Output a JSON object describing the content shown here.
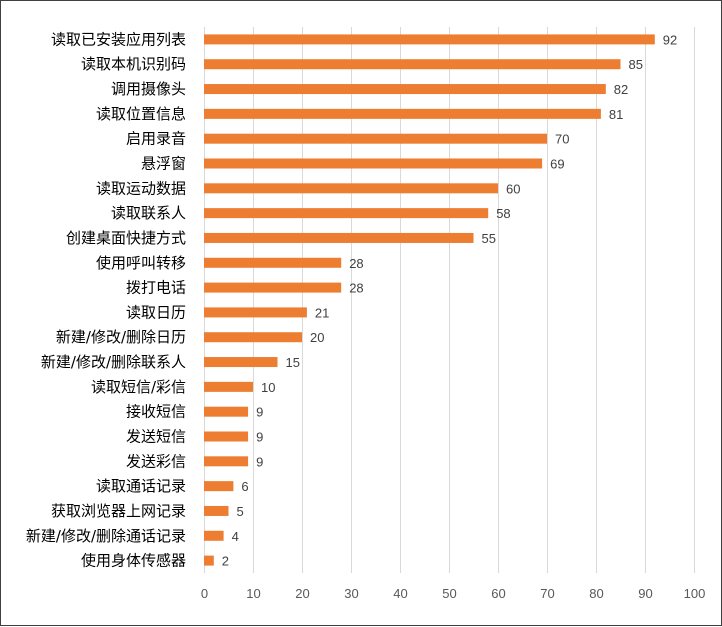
{
  "chart_data": {
    "type": "bar",
    "orientation": "horizontal",
    "categories": [
      "读取已安装应用列表",
      "读取本机识别码",
      "调用摄像头",
      "读取位置信息",
      "启用录音",
      "悬浮窗",
      "读取运动数据",
      "读取联系人",
      "创建桌面快捷方式",
      "使用呼叫转移",
      "拨打电话",
      "读取日历",
      "新建/修改/删除日历",
      "新建/修改/删除联系人",
      "读取短信/彩信",
      "接收短信",
      "发送短信",
      "发送彩信",
      "读取通话记录",
      "获取浏览器上网记录",
      "新建/修改/删除通话记录",
      "使用身体传感器"
    ],
    "values": [
      92,
      85,
      82,
      81,
      70,
      69,
      60,
      58,
      55,
      28,
      28,
      21,
      20,
      15,
      10,
      9,
      9,
      9,
      6,
      5,
      4,
      2
    ],
    "xlim": [
      0,
      100
    ],
    "xticks": [
      "0",
      "10",
      "20",
      "30",
      "40",
      "50",
      "60",
      "70",
      "80",
      "90",
      "100"
    ],
    "bar_color": "#ED7D31",
    "grid": true,
    "data_labels": true,
    "title": "",
    "xlabel": "",
    "ylabel": ""
  }
}
